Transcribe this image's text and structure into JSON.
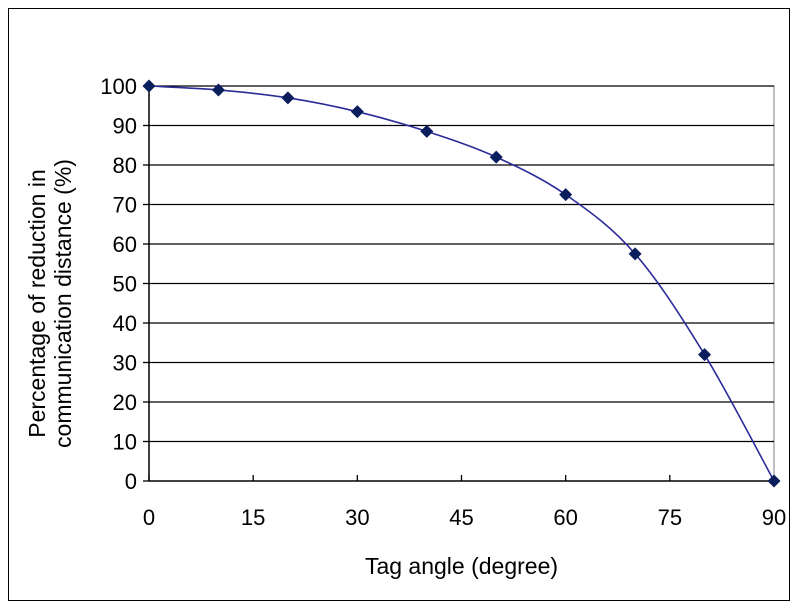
{
  "chart_data": {
    "type": "line",
    "title": "",
    "xlabel": "Tag angle (degree)",
    "ylabel_lines": [
      "Percentage of reduction in",
      "communication distance (%)"
    ],
    "xlim": [
      0,
      90
    ],
    "ylim": [
      0,
      100
    ],
    "xticks": [
      0,
      15,
      30,
      45,
      60,
      75,
      90
    ],
    "yticks": [
      0,
      10,
      20,
      30,
      40,
      50,
      60,
      70,
      80,
      90,
      100
    ],
    "grid": "horizontal",
    "legend": "none",
    "series": [
      {
        "x": [
          0,
          10,
          20,
          30,
          40,
          50,
          60,
          70,
          80,
          90
        ],
        "values": [
          100,
          99,
          97,
          93.5,
          88.5,
          82,
          72.5,
          57.5,
          32,
          0
        ]
      }
    ]
  },
  "colors": {
    "line": "#2b2b9a",
    "marker": "#0a1d5c",
    "grid": "#000000",
    "plot_background": "#ffffff"
  }
}
